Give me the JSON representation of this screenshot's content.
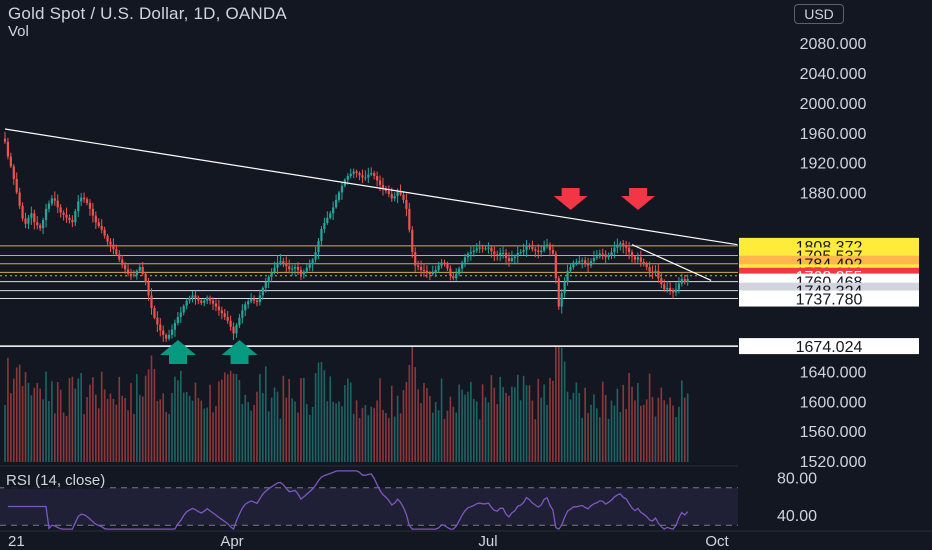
{
  "header": {
    "title": "Gold Spot / U.S. Dollar, 1D, OANDA",
    "volume_label": "Vol",
    "currency": "USD",
    "rsi_label": "RSI (14, close)"
  },
  "colors": {
    "background": "#131722",
    "up": "#26a69a",
    "down": "#ef5350",
    "rsi_line": "#7e57c2",
    "trendline": "#ffffff",
    "support_line": "#ffffff",
    "level_yellow": "#ffeb3b",
    "level_orange": "#ffb74d",
    "level_red": "#f23645",
    "arrow_up": "#089981",
    "arrow_down": "#f23645"
  },
  "chart_data": [
    {
      "type": "candlestick",
      "title": "Gold Spot / U.S. Dollar, 1D, OANDA",
      "y_ticks": [
        "2080.000",
        "2040.000",
        "2000.000",
        "1960.000",
        "1920.000",
        "1880.000",
        "1640.000",
        "1600.000",
        "1560.000",
        "1520.000"
      ],
      "ylim": [
        1505,
        2085
      ],
      "x_ticks": [
        "21",
        "Apr",
        "Jul",
        "Oct"
      ],
      "price_levels": [
        {
          "value": "1808.372",
          "style": "yellow"
        },
        {
          "value": "1795.537",
          "style": "yellow"
        },
        {
          "value": "1784.492",
          "style": "orange"
        },
        {
          "value": "1772.916",
          "style": "yellow"
        },
        {
          "value": "1768.255",
          "style": "red"
        },
        {
          "value": "1760.468",
          "style": "white"
        },
        {
          "value": "1748.324",
          "style": "gray"
        },
        {
          "value": "1737.780",
          "style": "white"
        },
        {
          "value": "1674.024",
          "style": "white"
        }
      ],
      "trendlines": [
        {
          "from": [
            0,
            1965
          ],
          "to": [
            250,
            1810
          ]
        },
        {
          "from": [
            214,
            1810
          ],
          "to": [
            241,
            1762
          ]
        }
      ],
      "support_line": 1674,
      "down_arrows_at_day": [
        191,
        214
      ],
      "up_arrows_at_day": [
        57,
        78
      ],
      "close_series": [
        1948,
        1928,
        1915,
        1898,
        1880,
        1862,
        1845,
        1838,
        1846,
        1852,
        1840,
        1836,
        1832,
        1843,
        1858,
        1865,
        1872,
        1869,
        1860,
        1853,
        1850,
        1846,
        1843,
        1840,
        1855,
        1868,
        1873,
        1871,
        1866,
        1858,
        1849,
        1840,
        1835,
        1830,
        1822,
        1814,
        1810,
        1804,
        1797,
        1790,
        1783,
        1777,
        1771,
        1770,
        1769,
        1775,
        1780,
        1771,
        1760,
        1742,
        1725,
        1712,
        1703,
        1695,
        1689,
        1684,
        1689,
        1696,
        1705,
        1713,
        1719,
        1728,
        1735,
        1739,
        1742,
        1739,
        1735,
        1732,
        1735,
        1739,
        1735,
        1731,
        1727,
        1722,
        1718,
        1713,
        1708,
        1700,
        1691,
        1702,
        1712,
        1722,
        1730,
        1734,
        1737,
        1735,
        1733,
        1742,
        1752,
        1760,
        1767,
        1773,
        1779,
        1786,
        1788,
        1785,
        1781,
        1777,
        1778,
        1780,
        1776,
        1770,
        1774,
        1779,
        1784,
        1790,
        1800,
        1815,
        1831,
        1839,
        1846,
        1852,
        1860,
        1870,
        1880,
        1889,
        1897,
        1902,
        1905,
        1908,
        1906,
        1903,
        1900,
        1900,
        1904,
        1906,
        1902,
        1896,
        1890,
        1885,
        1882,
        1878,
        1872,
        1875,
        1881,
        1877,
        1870,
        1858,
        1830,
        1800,
        1782,
        1780,
        1776,
        1775,
        1772,
        1771,
        1772,
        1776,
        1782,
        1786,
        1784,
        1778,
        1768,
        1765,
        1771,
        1778,
        1786,
        1793,
        1798,
        1800,
        1802,
        1805,
        1806,
        1805,
        1805,
        1806,
        1801,
        1797,
        1796,
        1799,
        1799,
        1792,
        1788,
        1792,
        1794,
        1799,
        1800,
        1803,
        1809,
        1807,
        1804,
        1802,
        1800,
        1802,
        1808,
        1810,
        1803,
        1798,
        1765,
        1727,
        1745,
        1760,
        1775,
        1780,
        1786,
        1786,
        1788,
        1789,
        1785,
        1782,
        1788,
        1792,
        1794,
        1798,
        1797,
        1793,
        1796,
        1800,
        1806,
        1810,
        1812,
        1808,
        1806,
        1800,
        1794,
        1790,
        1793,
        1787,
        1784,
        1780,
        1774,
        1772,
        1775,
        1765,
        1757,
        1750,
        1752,
        1749,
        1746,
        1750,
        1758,
        1764,
        1760,
        1764
      ],
      "volume_note": "volume bars shown below price"
    },
    {
      "type": "line",
      "title": "RSI (14, close)",
      "y_ticks": [
        "80.00",
        "40.00"
      ],
      "ylim": [
        25,
        90
      ],
      "bands": [
        30,
        70
      ]
    }
  ]
}
